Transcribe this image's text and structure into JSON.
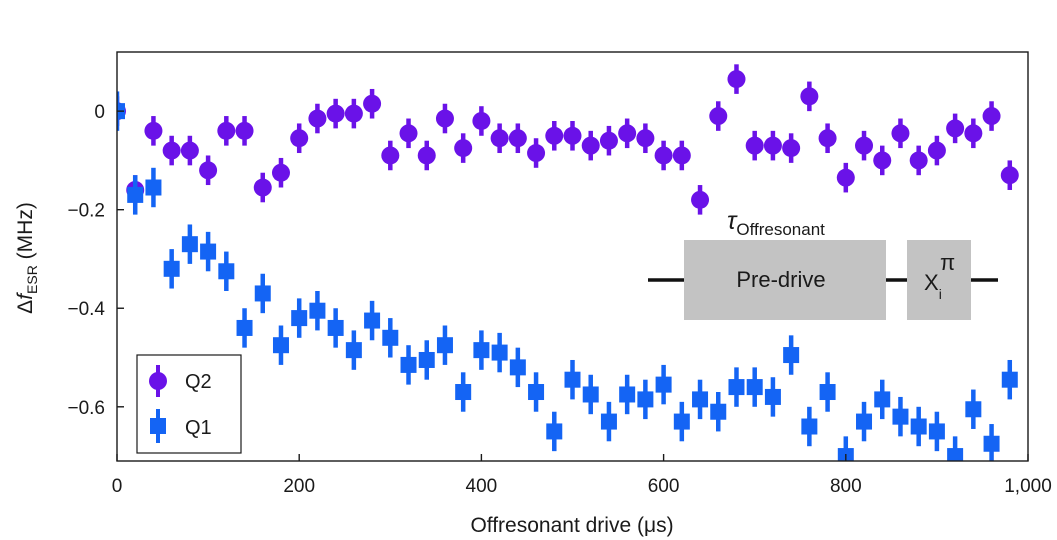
{
  "chart_data": {
    "type": "scatter",
    "title": "",
    "xlabel": "Offresonant drive (μs)",
    "ylabel": {
      "prefix": "Δ",
      "italic": "f",
      "subscript": "ESR",
      "suffix": " (MHz)"
    },
    "xlim": [
      0,
      1000
    ],
    "ylim": [
      -0.71,
      0.12
    ],
    "xticks": [
      0,
      200,
      400,
      600,
      800,
      1000
    ],
    "xtick_labels": [
      "0",
      "200",
      "400",
      "600",
      "800",
      "1,000"
    ],
    "yticks": [
      0,
      -0.2,
      -0.4,
      -0.6
    ],
    "ytick_labels": [
      "0",
      "−0.2",
      "−0.4",
      "−0.6"
    ],
    "legend_position": "bottom-left",
    "series": [
      {
        "name": "Q2",
        "marker": "circle",
        "color": "#6a12e8",
        "x": [
          0,
          20,
          40,
          60,
          80,
          100,
          120,
          140,
          160,
          180,
          200,
          220,
          240,
          260,
          280,
          300,
          320,
          340,
          360,
          380,
          400,
          420,
          440,
          460,
          480,
          500,
          520,
          540,
          560,
          580,
          600,
          620,
          640,
          660,
          680,
          700,
          720,
          740,
          760,
          780,
          800,
          820,
          840,
          860,
          880,
          900,
          920,
          940,
          960,
          980
        ],
        "y": [
          0.0,
          -0.16,
          -0.04,
          -0.08,
          -0.08,
          -0.12,
          -0.04,
          -0.04,
          -0.155,
          -0.125,
          -0.055,
          -0.015,
          -0.005,
          -0.005,
          0.015,
          -0.09,
          -0.045,
          -0.09,
          -0.015,
          -0.075,
          -0.02,
          -0.055,
          -0.055,
          -0.085,
          -0.05,
          -0.05,
          -0.07,
          -0.06,
          -0.045,
          -0.055,
          -0.09,
          -0.09,
          -0.18,
          -0.01,
          0.065,
          -0.07,
          -0.07,
          -0.075,
          0.03,
          -0.055,
          -0.135,
          -0.07,
          -0.1,
          -0.045,
          -0.1,
          -0.08,
          -0.035,
          -0.045,
          -0.01,
          -0.13
        ],
        "err": 0.03
      },
      {
        "name": "Q1",
        "marker": "square",
        "color": "#1464f4",
        "x": [
          0,
          20,
          40,
          60,
          80,
          100,
          120,
          140,
          160,
          180,
          200,
          220,
          240,
          260,
          280,
          300,
          320,
          340,
          360,
          380,
          400,
          420,
          440,
          460,
          480,
          500,
          520,
          540,
          560,
          580,
          600,
          620,
          640,
          660,
          680,
          700,
          720,
          740,
          760,
          780,
          800,
          820,
          840,
          860,
          880,
          900,
          920,
          940,
          960,
          980
        ],
        "y": [
          0.0,
          -0.17,
          -0.155,
          -0.32,
          -0.27,
          -0.285,
          -0.325,
          -0.44,
          -0.37,
          -0.475,
          -0.42,
          -0.405,
          -0.44,
          -0.485,
          -0.425,
          -0.46,
          -0.515,
          -0.505,
          -0.475,
          -0.57,
          -0.485,
          -0.49,
          -0.52,
          -0.57,
          -0.65,
          -0.545,
          -0.575,
          -0.63,
          -0.575,
          -0.585,
          -0.555,
          -0.63,
          -0.585,
          -0.61,
          -0.56,
          -0.56,
          -0.58,
          -0.495,
          -0.64,
          -0.57,
          -0.7,
          -0.63,
          -0.585,
          -0.62,
          -0.64,
          -0.65,
          -0.7,
          -0.605,
          -0.675,
          -0.545
        ],
        "err": 0.04
      }
    ],
    "inset": {
      "tau_symbol": "τ",
      "tau_subscript": "Offresonant",
      "block1_label": "Pre-drive",
      "block2_base": "X",
      "block2_sub": "i",
      "block2_sup": "π",
      "block_color": "#c3c3c3"
    }
  }
}
